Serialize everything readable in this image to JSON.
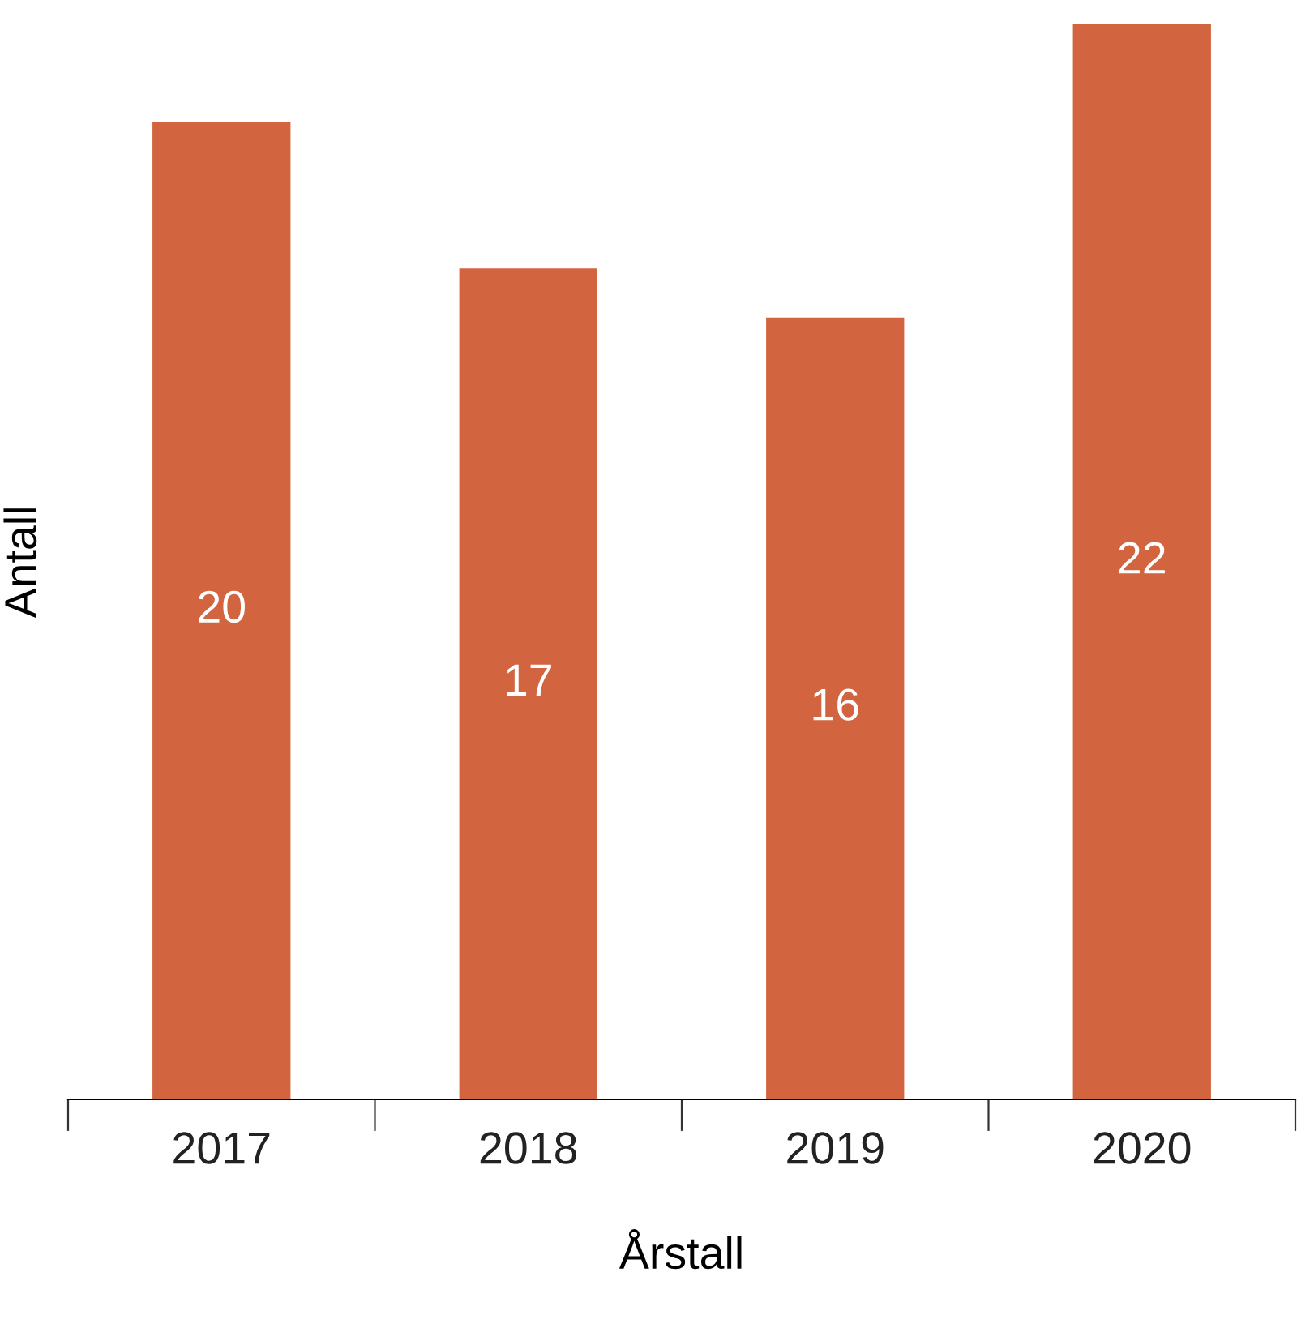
{
  "chart_data": {
    "type": "bar",
    "xlabel": "Årstall",
    "ylabel": "Antall",
    "categories": [
      "2017",
      "2018",
      "2019",
      "2020"
    ],
    "values": [
      20,
      17,
      16,
      22
    ],
    "color": "#d2643f",
    "data_labels": true,
    "grid": false
  }
}
